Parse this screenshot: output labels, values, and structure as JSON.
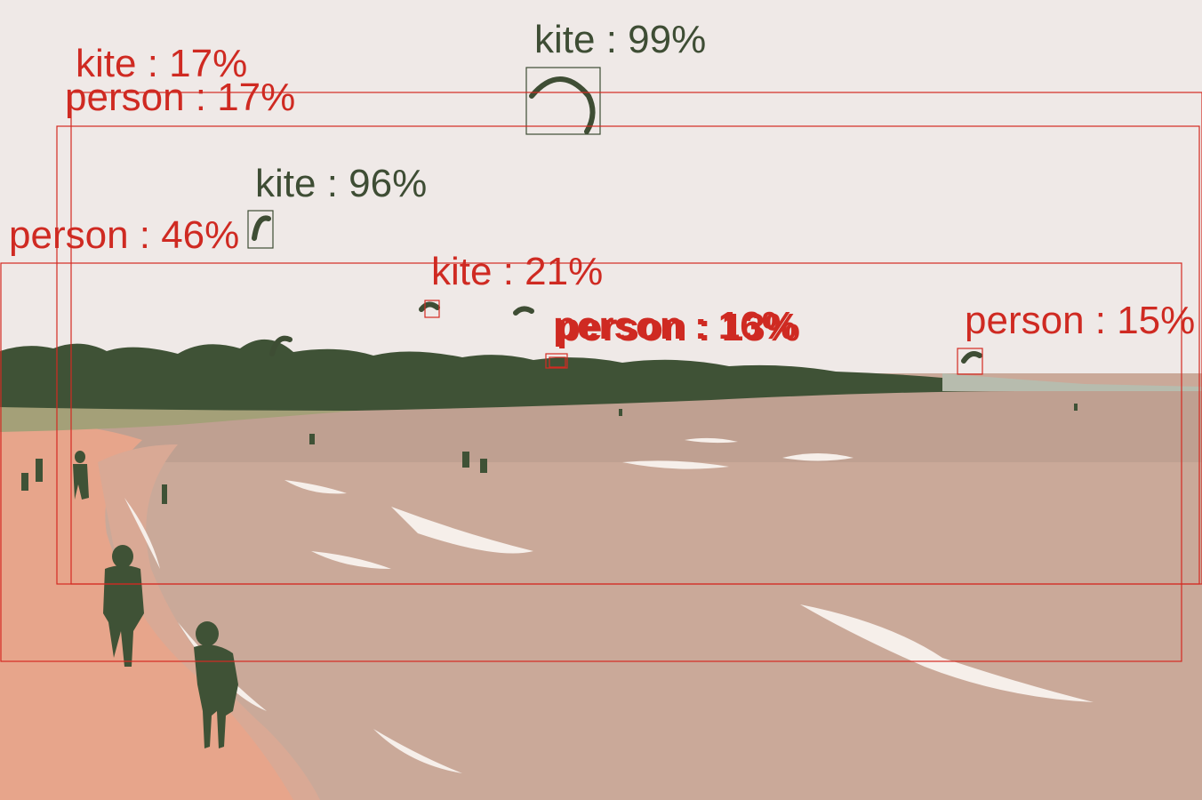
{
  "colors": {
    "sky": "#efe9e7",
    "treeline": "#3f5236",
    "water": "#c9aa98",
    "sand": "#e9a58c",
    "foam": "#f7efea",
    "person_box": "#d42a22",
    "kite_box": "#3e4d34"
  },
  "detections": [
    {
      "label": "kite : 99%",
      "class": "kite"
    },
    {
      "label": "kite : 17%",
      "class": "person"
    },
    {
      "label": "person : 17%",
      "class": "person"
    },
    {
      "label": "kite : 96%",
      "class": "kite"
    },
    {
      "label": "person : 46%",
      "class": "person"
    },
    {
      "label": "kite : 21%",
      "class": "person"
    },
    {
      "label": "person : 16%",
      "class": "person"
    },
    {
      "label": "person : 13%",
      "class": "person"
    },
    {
      "label": "person : 15%",
      "class": "person"
    }
  ]
}
